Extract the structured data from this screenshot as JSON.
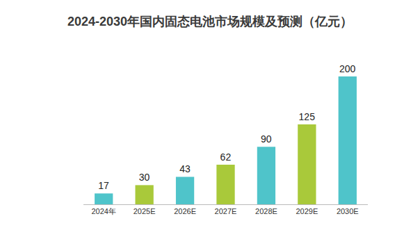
{
  "chart_data": {
    "type": "bar",
    "title": "2024-2030年国内固态电池市场规模及预测（亿元）",
    "categories": [
      "2024年",
      "2025E",
      "2026E",
      "2027E",
      "2028E",
      "2029E",
      "2030E"
    ],
    "values": [
      17,
      30,
      43,
      62,
      90,
      125,
      200
    ],
    "colors": [
      "#4fc4ca",
      "#a9c93a",
      "#4fc4ca",
      "#a9c93a",
      "#4fc4ca",
      "#a9c93a",
      "#4fc4ca"
    ],
    "ylim": [
      0,
      200
    ],
    "grid": false,
    "data_labels": true,
    "tick_labels": "x"
  }
}
